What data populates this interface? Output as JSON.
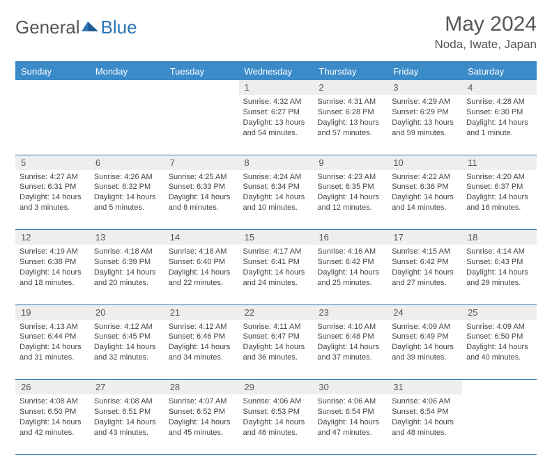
{
  "logo": {
    "general": "General",
    "blue": "Blue"
  },
  "title": "May 2024",
  "location": "Noda, Iwate, Japan",
  "colors": {
    "header_bg": "#3b8bc9",
    "header_text": "#ffffff",
    "border": "#2e75b6",
    "daynum_bg": "#eeeeee",
    "body_text": "#444444",
    "title_text": "#555555"
  },
  "day_headers": [
    "Sunday",
    "Monday",
    "Tuesday",
    "Wednesday",
    "Thursday",
    "Friday",
    "Saturday"
  ],
  "weeks": [
    {
      "nums": [
        "",
        "",
        "",
        "1",
        "2",
        "3",
        "4"
      ],
      "cells": [
        null,
        null,
        null,
        {
          "sunrise": "Sunrise: 4:32 AM",
          "sunset": "Sunset: 6:27 PM",
          "day1": "Daylight: 13 hours",
          "day2": "and 54 minutes."
        },
        {
          "sunrise": "Sunrise: 4:31 AM",
          "sunset": "Sunset: 6:28 PM",
          "day1": "Daylight: 13 hours",
          "day2": "and 57 minutes."
        },
        {
          "sunrise": "Sunrise: 4:29 AM",
          "sunset": "Sunset: 6:29 PM",
          "day1": "Daylight: 13 hours",
          "day2": "and 59 minutes."
        },
        {
          "sunrise": "Sunrise: 4:28 AM",
          "sunset": "Sunset: 6:30 PM",
          "day1": "Daylight: 14 hours",
          "day2": "and 1 minute."
        }
      ]
    },
    {
      "nums": [
        "5",
        "6",
        "7",
        "8",
        "9",
        "10",
        "11"
      ],
      "cells": [
        {
          "sunrise": "Sunrise: 4:27 AM",
          "sunset": "Sunset: 6:31 PM",
          "day1": "Daylight: 14 hours",
          "day2": "and 3 minutes."
        },
        {
          "sunrise": "Sunrise: 4:26 AM",
          "sunset": "Sunset: 6:32 PM",
          "day1": "Daylight: 14 hours",
          "day2": "and 5 minutes."
        },
        {
          "sunrise": "Sunrise: 4:25 AM",
          "sunset": "Sunset: 6:33 PM",
          "day1": "Daylight: 14 hours",
          "day2": "and 8 minutes."
        },
        {
          "sunrise": "Sunrise: 4:24 AM",
          "sunset": "Sunset: 6:34 PM",
          "day1": "Daylight: 14 hours",
          "day2": "and 10 minutes."
        },
        {
          "sunrise": "Sunrise: 4:23 AM",
          "sunset": "Sunset: 6:35 PM",
          "day1": "Daylight: 14 hours",
          "day2": "and 12 minutes."
        },
        {
          "sunrise": "Sunrise: 4:22 AM",
          "sunset": "Sunset: 6:36 PM",
          "day1": "Daylight: 14 hours",
          "day2": "and 14 minutes."
        },
        {
          "sunrise": "Sunrise: 4:20 AM",
          "sunset": "Sunset: 6:37 PM",
          "day1": "Daylight: 14 hours",
          "day2": "and 16 minutes."
        }
      ]
    },
    {
      "nums": [
        "12",
        "13",
        "14",
        "15",
        "16",
        "17",
        "18"
      ],
      "cells": [
        {
          "sunrise": "Sunrise: 4:19 AM",
          "sunset": "Sunset: 6:38 PM",
          "day1": "Daylight: 14 hours",
          "day2": "and 18 minutes."
        },
        {
          "sunrise": "Sunrise: 4:18 AM",
          "sunset": "Sunset: 6:39 PM",
          "day1": "Daylight: 14 hours",
          "day2": "and 20 minutes."
        },
        {
          "sunrise": "Sunrise: 4:18 AM",
          "sunset": "Sunset: 6:40 PM",
          "day1": "Daylight: 14 hours",
          "day2": "and 22 minutes."
        },
        {
          "sunrise": "Sunrise: 4:17 AM",
          "sunset": "Sunset: 6:41 PM",
          "day1": "Daylight: 14 hours",
          "day2": "and 24 minutes."
        },
        {
          "sunrise": "Sunrise: 4:16 AM",
          "sunset": "Sunset: 6:42 PM",
          "day1": "Daylight: 14 hours",
          "day2": "and 25 minutes."
        },
        {
          "sunrise": "Sunrise: 4:15 AM",
          "sunset": "Sunset: 6:42 PM",
          "day1": "Daylight: 14 hours",
          "day2": "and 27 minutes."
        },
        {
          "sunrise": "Sunrise: 4:14 AM",
          "sunset": "Sunset: 6:43 PM",
          "day1": "Daylight: 14 hours",
          "day2": "and 29 minutes."
        }
      ]
    },
    {
      "nums": [
        "19",
        "20",
        "21",
        "22",
        "23",
        "24",
        "25"
      ],
      "cells": [
        {
          "sunrise": "Sunrise: 4:13 AM",
          "sunset": "Sunset: 6:44 PM",
          "day1": "Daylight: 14 hours",
          "day2": "and 31 minutes."
        },
        {
          "sunrise": "Sunrise: 4:12 AM",
          "sunset": "Sunset: 6:45 PM",
          "day1": "Daylight: 14 hours",
          "day2": "and 32 minutes."
        },
        {
          "sunrise": "Sunrise: 4:12 AM",
          "sunset": "Sunset: 6:46 PM",
          "day1": "Daylight: 14 hours",
          "day2": "and 34 minutes."
        },
        {
          "sunrise": "Sunrise: 4:11 AM",
          "sunset": "Sunset: 6:47 PM",
          "day1": "Daylight: 14 hours",
          "day2": "and 36 minutes."
        },
        {
          "sunrise": "Sunrise: 4:10 AM",
          "sunset": "Sunset: 6:48 PM",
          "day1": "Daylight: 14 hours",
          "day2": "and 37 minutes."
        },
        {
          "sunrise": "Sunrise: 4:09 AM",
          "sunset": "Sunset: 6:49 PM",
          "day1": "Daylight: 14 hours",
          "day2": "and 39 minutes."
        },
        {
          "sunrise": "Sunrise: 4:09 AM",
          "sunset": "Sunset: 6:50 PM",
          "day1": "Daylight: 14 hours",
          "day2": "and 40 minutes."
        }
      ]
    },
    {
      "nums": [
        "26",
        "27",
        "28",
        "29",
        "30",
        "31",
        ""
      ],
      "cells": [
        {
          "sunrise": "Sunrise: 4:08 AM",
          "sunset": "Sunset: 6:50 PM",
          "day1": "Daylight: 14 hours",
          "day2": "and 42 minutes."
        },
        {
          "sunrise": "Sunrise: 4:08 AM",
          "sunset": "Sunset: 6:51 PM",
          "day1": "Daylight: 14 hours",
          "day2": "and 43 minutes."
        },
        {
          "sunrise": "Sunrise: 4:07 AM",
          "sunset": "Sunset: 6:52 PM",
          "day1": "Daylight: 14 hours",
          "day2": "and 45 minutes."
        },
        {
          "sunrise": "Sunrise: 4:06 AM",
          "sunset": "Sunset: 6:53 PM",
          "day1": "Daylight: 14 hours",
          "day2": "and 46 minutes."
        },
        {
          "sunrise": "Sunrise: 4:06 AM",
          "sunset": "Sunset: 6:54 PM",
          "day1": "Daylight: 14 hours",
          "day2": "and 47 minutes."
        },
        {
          "sunrise": "Sunrise: 4:06 AM",
          "sunset": "Sunset: 6:54 PM",
          "day1": "Daylight: 14 hours",
          "day2": "and 48 minutes."
        },
        null
      ]
    }
  ]
}
